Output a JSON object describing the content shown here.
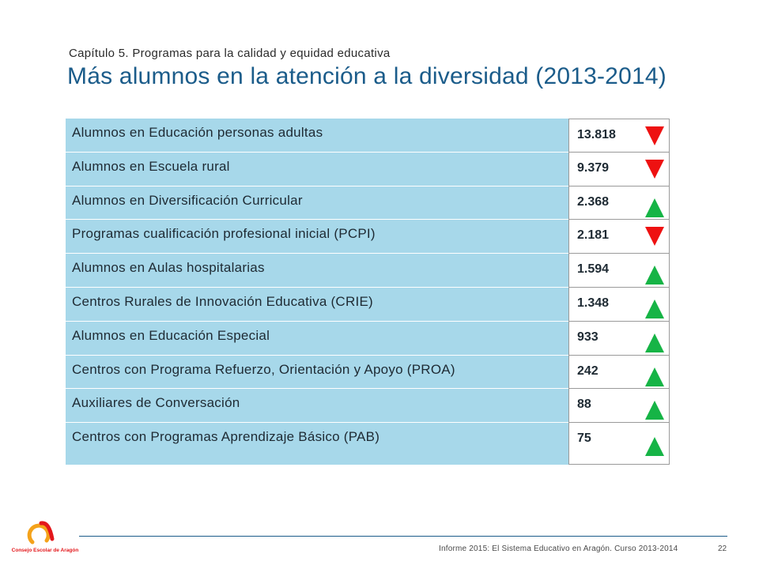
{
  "header": {
    "subtitle": "Capítulo 5. Programas para la calidad y equidad educativa",
    "title": "Más alumnos en la atención a la diversidad (2013-2014)"
  },
  "rows": [
    {
      "label": "Alumnos en Educación personas adultas",
      "value": "13.818",
      "trend": "down",
      "trend_icon": "down-arrow-icon"
    },
    {
      "label": "Alumnos en Escuela rural",
      "value": "9.379",
      "trend": "down",
      "trend_icon": "down-arrow-icon"
    },
    {
      "label": "Alumnos en Diversificación Curricular",
      "value": "2.368",
      "trend": "up",
      "trend_icon": "up-arrow-icon"
    },
    {
      "label": "Programas cualificación profesional inicial (PCPI)",
      "value": "2.181",
      "trend": "down",
      "trend_icon": "down-arrow-icon"
    },
    {
      "label": "Alumnos en Aulas hospitalarias",
      "value": "1.594",
      "trend": "up",
      "trend_icon": "up-arrow-icon"
    },
    {
      "label": "Centros Rurales de Innovación Educativa (CRIE)",
      "value": "1.348",
      "trend": "up",
      "trend_icon": "up-arrow-icon"
    },
    {
      "label": "Alumnos en Educación Especial",
      "value": "933",
      "trend": "up",
      "trend_icon": "up-arrow-icon"
    },
    {
      "label": "Centros con Programa Refuerzo, Orientación y Apoyo (PROA)",
      "value": "242",
      "trend": "up",
      "trend_icon": "up-arrow-icon"
    },
    {
      "label": "Auxiliares de Conversación",
      "value": "88",
      "trend": "up",
      "trend_icon": "up-arrow-icon"
    },
    {
      "label": "Centros con Programas Aprendizaje Básico (PAB)",
      "value": "75",
      "trend": "up",
      "trend_icon": "up-arrow-icon"
    }
  ],
  "colors": {
    "label_background": "#a7d8ea",
    "title": "#1b5c8a",
    "arrow_down": "#ee1111",
    "arrow_up": "#16b446"
  },
  "footer": {
    "logo_text": "Consejo Escolar de Aragón",
    "text": "Informe 2015: El Sistema Educativo en Aragón. Curso 2013-2014",
    "page_number": "22"
  }
}
